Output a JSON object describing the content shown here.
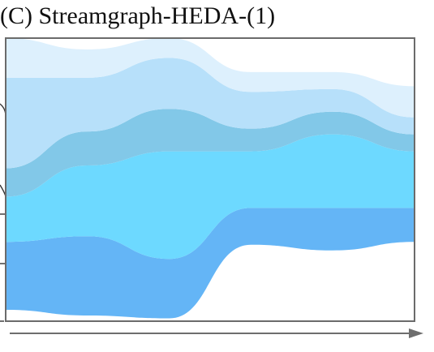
{
  "title": "(C) Streamgraph-HEDA-(1)",
  "colors": {
    "frame": "#6b6b6b",
    "axis": "#6e6e6e",
    "left_edge_marks": "#333333"
  },
  "chart_data": {
    "type": "area",
    "subtype": "streamgraph",
    "title": "(C) Streamgraph-HEDA-(1)",
    "xlabel": "",
    "ylabel": "",
    "grid": false,
    "legend": "none",
    "x_axis": "arrow only, no ticks",
    "x": [
      0,
      1,
      2,
      3,
      4,
      5
    ],
    "baseline": [
      0.04,
      0.02,
      0.01,
      0.27,
      0.25,
      0.28
    ],
    "series": [
      {
        "color": "#64b5f6",
        "values": [
          0.24,
          0.28,
          0.21,
          0.13,
          0.15,
          0.12
        ]
      },
      {
        "color": "#6dd9ff",
        "values": [
          0.16,
          0.25,
          0.38,
          0.2,
          0.26,
          0.2
        ]
      },
      {
        "color": "#82c8e8",
        "values": [
          0.1,
          0.12,
          0.15,
          0.08,
          0.08,
          0.06
        ]
      },
      {
        "color": "#b7e0fa",
        "values": [
          0.32,
          0.19,
          0.18,
          0.13,
          0.08,
          0.06
        ]
      },
      {
        "color": "#ddf0fd",
        "values": [
          0.14,
          0.1,
          0.07,
          0.07,
          0.06,
          0.11
        ]
      }
    ]
  }
}
